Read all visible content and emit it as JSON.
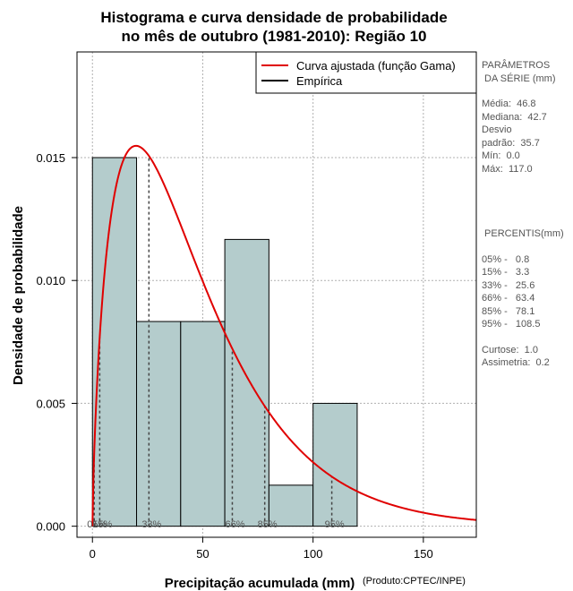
{
  "chart_data": {
    "type": "bar",
    "title": [
      "Histograma e curva densidade de probabilidade",
      "no mês de outubro (1981-2010): Região 10"
    ],
    "xlabel": "Precipitação acumulada (mm)",
    "ylabel": "Densidade de probabilidade",
    "credit": "(Produto:CPTEC/INPE)",
    "xlim": [
      -7,
      174
    ],
    "ylim": [
      -0.00045,
      0.0193
    ],
    "x_ticks": [
      0,
      50,
      100,
      150
    ],
    "y_ticks": [
      0.0,
      0.005,
      0.01,
      0.015
    ],
    "y_tick_labels": [
      "0.000",
      "0.005",
      "0.010",
      "0.015"
    ],
    "grid": true,
    "bar_color": "#b4cccc",
    "curve_color": "#e00000",
    "bins": [
      {
        "start": 0,
        "end": 20,
        "density": 0.015
      },
      {
        "start": 20,
        "end": 40,
        "density": 0.00833
      },
      {
        "start": 40,
        "end": 60,
        "density": 0.00833
      },
      {
        "start": 60,
        "end": 80,
        "density": 0.01167
      },
      {
        "start": 80,
        "end": 100,
        "density": 0.00167
      },
      {
        "start": 100,
        "end": 120,
        "density": 0.005
      }
    ],
    "fitted_curve": {
      "name": "Curva ajustada (função Gama)",
      "shape": 1.73,
      "scale": 27.05
    },
    "legend": [
      {
        "label": "Curva ajustada (função Gama)",
        "color": "#e00000"
      },
      {
        "label": "Empírica",
        "color": "#000000"
      }
    ],
    "percentile_markers": [
      {
        "label": "05%",
        "x": 0.8
      },
      {
        "label": "15%",
        "x": 3.3
      },
      {
        "label": "33%",
        "x": 25.6
      },
      {
        "label": "66%",
        "x": 63.4
      },
      {
        "label": "85%",
        "x": 78.1
      },
      {
        "label": "95%",
        "x": 108.5
      }
    ]
  },
  "side_panel": {
    "params_title": "PARÂMETROS",
    "params_subtitle": " DA SÉRIE (mm)",
    "stats": [
      "Média:  46.8",
      "Mediana:  42.7",
      "Desvio",
      "padrão:  35.7",
      "Mín:  0.0",
      "Máx:  117.0"
    ],
    "percentis_title": " PERCENTIS(mm)",
    "percentis": [
      "05% -   0.8",
      "15% -   3.3",
      "33% -   25.6",
      "66% -   63.4",
      "85% -   78.1",
      "95% -   108.5"
    ],
    "shape_stats": [
      "Curtose:  1.0",
      "Assimetria:  0.2"
    ]
  }
}
